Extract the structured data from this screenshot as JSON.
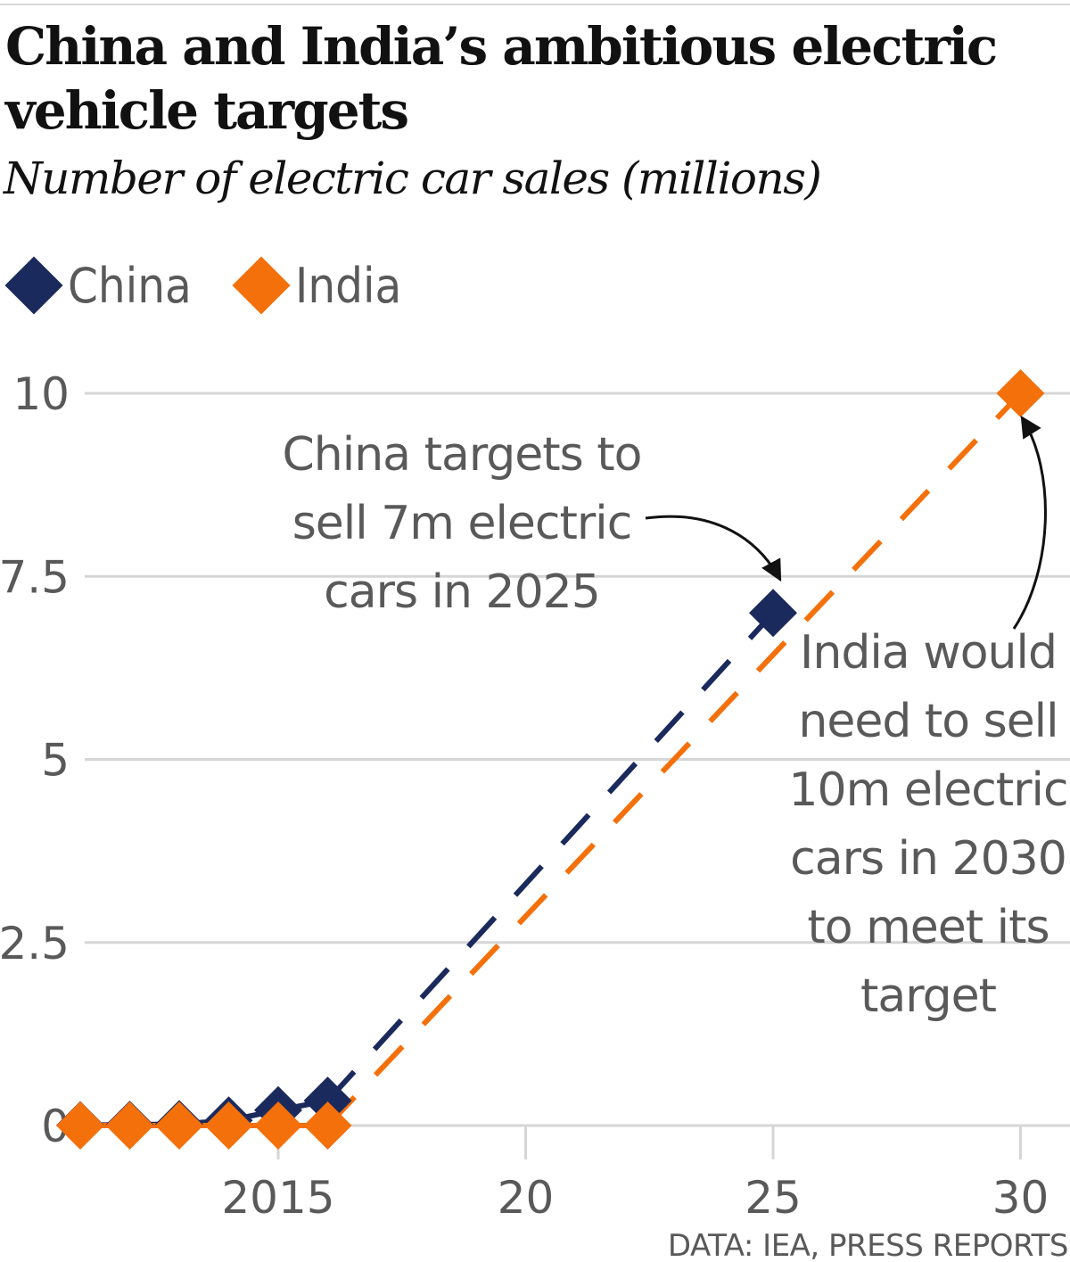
{
  "chart_data": {
    "type": "line",
    "title": "China and India’s ambitious electric vehicle targets",
    "subtitle": "Number of electric car sales (millions)",
    "source": "DATA: IEA, PRESS REPORTS",
    "legend_position": "top-left",
    "grid": true,
    "xlim": [
      2011,
      2031
    ],
    "ylim": [
      0,
      10
    ],
    "x_ticks": [
      {
        "value": 2015,
        "label": "2015"
      },
      {
        "value": 2020,
        "label": "20"
      },
      {
        "value": 2025,
        "label": "25"
      },
      {
        "value": 2030,
        "label": "30"
      }
    ],
    "y_ticks": [
      {
        "value": 0,
        "label": "0"
      },
      {
        "value": 2.5,
        "label": "2.5"
      },
      {
        "value": 5,
        "label": "5"
      },
      {
        "value": 7.5,
        "label": "7.5"
      },
      {
        "value": 10,
        "label": "10"
      }
    ],
    "series": [
      {
        "name": "China",
        "color": "#1b2a5c",
        "values": [
          [
            2011,
            0.005
          ],
          [
            2012,
            0.01
          ],
          [
            2013,
            0.02
          ],
          [
            2014,
            0.07
          ],
          [
            2015,
            0.21
          ],
          [
            2016,
            0.34
          ]
        ],
        "projection": [
          [
            2016,
            0.34
          ],
          [
            2025,
            7
          ]
        ]
      },
      {
        "name": "India",
        "color": "#f4700a",
        "values": [
          [
            2011,
            0
          ],
          [
            2012,
            0
          ],
          [
            2013,
            0
          ],
          [
            2014,
            0
          ],
          [
            2015,
            0
          ],
          [
            2016,
            0
          ]
        ],
        "projection": [
          [
            2016,
            0
          ],
          [
            2030,
            10
          ]
        ]
      }
    ],
    "annotations": [
      {
        "lines": [
          "China targets to",
          "sell 7m electric",
          "cars in 2025"
        ],
        "points_to": [
          2025,
          7
        ]
      },
      {
        "lines": [
          "India would",
          "need to sell",
          "10m electric",
          "cars in 2030",
          "to meet its",
          "target"
        ],
        "points_to": [
          2030,
          10
        ]
      }
    ]
  }
}
